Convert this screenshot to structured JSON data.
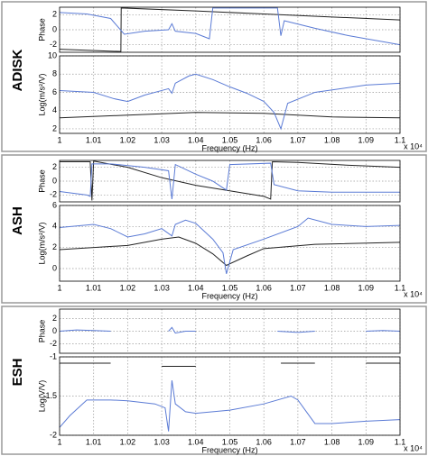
{
  "chart_data": [
    {
      "type": "line",
      "panel_label": "ADISK",
      "ylabel": "Phase",
      "xlim": [
        1,
        1.1
      ],
      "ylim": [
        -3,
        3
      ],
      "yticks": [
        -2,
        0,
        2
      ],
      "grid": true,
      "series": [
        {
          "color": "#222222",
          "x": [
            1.0,
            1.018,
            1.0181,
            1.04,
            1.06,
            1.08,
            1.1
          ],
          "values": [
            -2.6,
            -2.9,
            2.9,
            2.5,
            2.1,
            1.7,
            1.3
          ]
        },
        {
          "color": "#5b7bd5",
          "x": [
            1.0,
            1.008,
            1.015,
            1.019,
            1.025,
            1.032,
            1.033,
            1.034,
            1.04,
            1.044,
            1.045,
            1.064,
            1.065,
            1.066,
            1.075,
            1.085,
            1.1
          ],
          "values": [
            2.3,
            2.1,
            1.5,
            -0.6,
            -0.2,
            0,
            0.8,
            -0.2,
            -0.5,
            -1.2,
            2.9,
            2.9,
            -0.8,
            1.2,
            0.2,
            -0.8,
            -2.0
          ]
        }
      ]
    },
    {
      "type": "line",
      "ylabel": "Log(m/s²/V)",
      "xlabel": "Frequency (Hz)",
      "x_multiplier": "x 10⁴",
      "xlim": [
        1,
        1.1
      ],
      "xticks": [
        1,
        1.01,
        1.02,
        1.03,
        1.04,
        1.05,
        1.06,
        1.07,
        1.08,
        1.09,
        1.1
      ],
      "ylim": [
        1.5,
        10
      ],
      "yticks": [
        2,
        4,
        6,
        8,
        10
      ],
      "grid": true,
      "series": [
        {
          "color": "#222222",
          "x": [
            1.0,
            1.02,
            1.04,
            1.06,
            1.08,
            1.1
          ],
          "values": [
            3.2,
            3.5,
            3.8,
            3.7,
            3.3,
            3.2
          ]
        },
        {
          "color": "#5b7bd5",
          "x": [
            1.0,
            1.01,
            1.016,
            1.02,
            1.025,
            1.03,
            1.032,
            1.033,
            1.034,
            1.038,
            1.04,
            1.045,
            1.05,
            1.055,
            1.06,
            1.063,
            1.065,
            1.067,
            1.075,
            1.09,
            1.1
          ],
          "values": [
            6.2,
            6.0,
            5.3,
            5.0,
            5.7,
            6.2,
            6.4,
            5.9,
            7.0,
            7.8,
            8.0,
            7.4,
            6.6,
            5.9,
            5.0,
            3.8,
            2.0,
            4.8,
            6.0,
            6.8,
            7.0
          ]
        }
      ]
    },
    {
      "type": "line",
      "panel_label": "ASH",
      "ylabel": "Phase",
      "xlim": [
        1,
        1.1
      ],
      "ylim": [
        -3,
        3
      ],
      "yticks": [
        -2,
        0,
        2
      ],
      "grid": true,
      "series": [
        {
          "color": "#222222",
          "x": [
            1.0,
            1.009,
            1.0095,
            1.01,
            1.02,
            1.03,
            1.04,
            1.05,
            1.06,
            1.062,
            1.0625,
            1.07,
            1.085,
            1.1
          ],
          "values": [
            2.8,
            2.8,
            -2.8,
            2.9,
            2.0,
            0.5,
            -0.6,
            -1.4,
            -2.2,
            -2.6,
            2.8,
            2.7,
            2.3,
            2.0
          ]
        },
        {
          "color": "#5b7bd5",
          "x": [
            1.0,
            1.008,
            1.009,
            1.0095,
            1.015,
            1.025,
            1.032,
            1.033,
            1.034,
            1.04,
            1.045,
            1.049,
            1.05,
            1.062,
            1.063,
            1.07,
            1.08,
            1.1
          ],
          "values": [
            -1.5,
            -2.0,
            -2.2,
            2.5,
            2.5,
            2.0,
            1.5,
            -2.6,
            2.4,
            1.0,
            0,
            -1.3,
            2.4,
            2.6,
            -0.5,
            -1.4,
            -1.6,
            -1.6
          ]
        }
      ]
    },
    {
      "type": "line",
      "ylabel": "Log(m/s²/V)",
      "xlabel": "Frequency (Hz)",
      "x_multiplier": "x 10⁴",
      "xlim": [
        1,
        1.1
      ],
      "xticks": [
        1,
        1.01,
        1.02,
        1.03,
        1.04,
        1.05,
        1.06,
        1.07,
        1.08,
        1.09,
        1.1
      ],
      "ylim": [
        -1.2,
        6
      ],
      "yticks": [
        0,
        2,
        4,
        6
      ],
      "grid": true,
      "series": [
        {
          "color": "#222222",
          "x": [
            1.0,
            1.02,
            1.03,
            1.035,
            1.04,
            1.045,
            1.049,
            1.055,
            1.06,
            1.075,
            1.1
          ],
          "values": [
            1.8,
            2.2,
            2.8,
            3.0,
            2.4,
            1.4,
            0.3,
            1.2,
            1.9,
            2.3,
            2.5
          ]
        },
        {
          "color": "#5b7bd5",
          "x": [
            1.0,
            1.01,
            1.015,
            1.02,
            1.025,
            1.03,
            1.033,
            1.034,
            1.037,
            1.04,
            1.045,
            1.048,
            1.049,
            1.051,
            1.06,
            1.07,
            1.073,
            1.08,
            1.09,
            1.1
          ],
          "values": [
            3.9,
            4.2,
            3.8,
            3.0,
            3.3,
            3.8,
            3.1,
            4.2,
            4.6,
            4.3,
            2.8,
            1.5,
            -0.5,
            1.8,
            2.8,
            4.0,
            4.8,
            4.2,
            4.0,
            4.1
          ]
        }
      ]
    },
    {
      "type": "line",
      "panel_label": "ESH",
      "ylabel": "Phase",
      "xlim": [
        1,
        1.1
      ],
      "ylim": [
        -3.5,
        3.5
      ],
      "yticks": [
        -2,
        0,
        2
      ],
      "grid": true,
      "series": [
        {
          "color": "#5b7bd5",
          "x": [
            1.0,
            1.005,
            1.01,
            1.015,
            1.016,
            1.032,
            1.033,
            1.034,
            1.037,
            1.04,
            1.041,
            1.064,
            1.07,
            1.075,
            1.076,
            1.09,
            1.095,
            1.1
          ],
          "values": [
            0,
            0.2,
            0.1,
            0,
            null,
            0,
            0.6,
            -0.3,
            0,
            0,
            null,
            0,
            -0.2,
            0,
            null,
            0,
            0.1,
            0
          ]
        }
      ]
    },
    {
      "type": "line",
      "ylabel": "Log(V/V)",
      "xlabel": "Frequency (Hz)",
      "x_multiplier": "x 10⁴",
      "xlim": [
        1,
        1.1
      ],
      "xticks": [
        1,
        1.01,
        1.02,
        1.03,
        1.04,
        1.05,
        1.06,
        1.07,
        1.08,
        1.09,
        1.1
      ],
      "ylim": [
        -2,
        -1
      ],
      "yticks": [
        -2,
        -1.5,
        -1
      ],
      "grid": true,
      "series": [
        {
          "color": "#222222",
          "x": [
            1.0,
            1.015,
            1.016,
            1.03,
            1.04,
            1.041,
            1.065,
            1.075,
            1.076,
            1.09,
            1.1
          ],
          "values": [
            -1.08,
            -1.08,
            null,
            -1.12,
            -1.12,
            null,
            -1.08,
            -1.08,
            null,
            -1.08,
            -1.08
          ]
        },
        {
          "color": "#5b7bd5",
          "x": [
            1.0,
            1.003,
            1.008,
            1.015,
            1.02,
            1.028,
            1.031,
            1.032,
            1.033,
            1.034,
            1.037,
            1.04,
            1.05,
            1.06,
            1.068,
            1.07,
            1.075,
            1.08,
            1.09,
            1.1
          ],
          "values": [
            -1.9,
            -1.75,
            -1.55,
            -1.55,
            -1.56,
            -1.6,
            -1.65,
            -1.95,
            -1.3,
            -1.6,
            -1.7,
            -1.72,
            -1.68,
            -1.6,
            -1.5,
            -1.55,
            -1.85,
            -1.85,
            -1.82,
            -1.8
          ]
        }
      ]
    }
  ]
}
